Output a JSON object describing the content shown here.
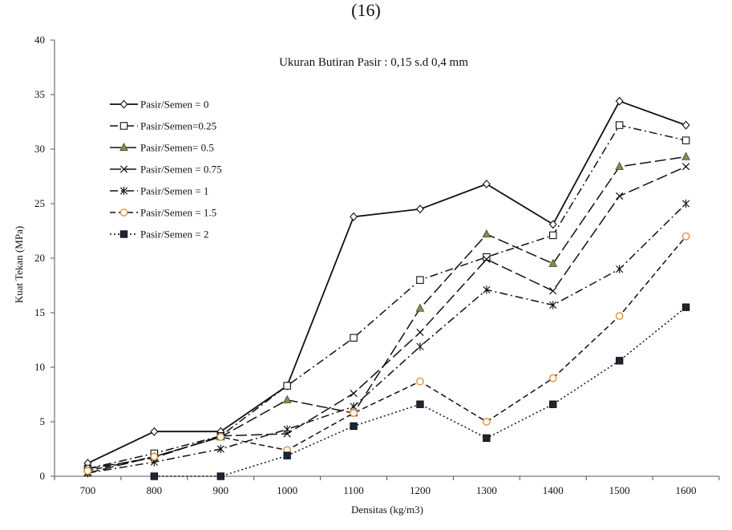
{
  "page": {
    "top_fragment": "(16)"
  },
  "chart_data": {
    "type": "line",
    "title": "Ukuran Butiran Pasir :  0,15 s.d 0,4 mm",
    "xlabel": "Densitas (kg/m3)",
    "ylabel": "Kuat Tekan (MPa)",
    "categories": [
      "700",
      "800",
      "900",
      "1000",
      "1100",
      "1200",
      "1300",
      "1400",
      "1500",
      "1600"
    ],
    "ylim": [
      0,
      40
    ],
    "yticks": [
      0,
      5,
      10,
      15,
      20,
      25,
      30,
      35,
      40
    ],
    "grid": false,
    "legend_position": "top-left",
    "series": [
      {
        "name": "Pasir/Semen = 0",
        "marker": "diamond-open",
        "dash": "solid",
        "values": [
          1.2,
          4.1,
          4.1,
          8.3,
          23.8,
          24.5,
          26.8,
          23.1,
          34.4,
          32.2
        ]
      },
      {
        "name": "Pasir/Semen=0.25",
        "marker": "square-open",
        "dash": "dashdot",
        "values": [
          0.7,
          2.1,
          3.7,
          8.3,
          12.7,
          18.0,
          20.1,
          22.1,
          32.2,
          30.8
        ]
      },
      {
        "name": "Pasir/Semen= 0.5",
        "marker": "triangle",
        "dash": "longdash",
        "values": [
          0.3,
          1.8,
          3.6,
          7.0,
          5.8,
          15.4,
          22.2,
          19.5,
          28.4,
          29.3
        ]
      },
      {
        "name": "Pasir/Semen = 0.75",
        "marker": "x",
        "dash": "longdash",
        "values": [
          0.7,
          1.7,
          3.7,
          3.9,
          7.6,
          13.2,
          19.9,
          17.0,
          25.7,
          28.4
        ]
      },
      {
        "name": "Pasir/Semen = 1",
        "marker": "asterisk",
        "dash": "dashdot",
        "values": [
          0.3,
          1.3,
          2.5,
          4.3,
          6.4,
          11.9,
          17.1,
          15.7,
          19.0,
          25.0
        ]
      },
      {
        "name": "Pasir/Semen = 1.5",
        "marker": "circle-open",
        "dash": "dash",
        "values": [
          0.5,
          1.8,
          3.6,
          2.4,
          5.8,
          8.7,
          5.0,
          9.0,
          14.7,
          22.0
        ]
      },
      {
        "name": "Pasir/Semen = 2",
        "marker": "square-filled",
        "dash": "dotted",
        "values": [
          null,
          0.0,
          0.0,
          1.9,
          4.6,
          6.6,
          3.5,
          6.6,
          10.6,
          15.5
        ]
      }
    ],
    "colors": {
      "line": "#111111",
      "triangle_fill": "#7f8f4f",
      "circle_stroke": "#e08a2e"
    }
  }
}
